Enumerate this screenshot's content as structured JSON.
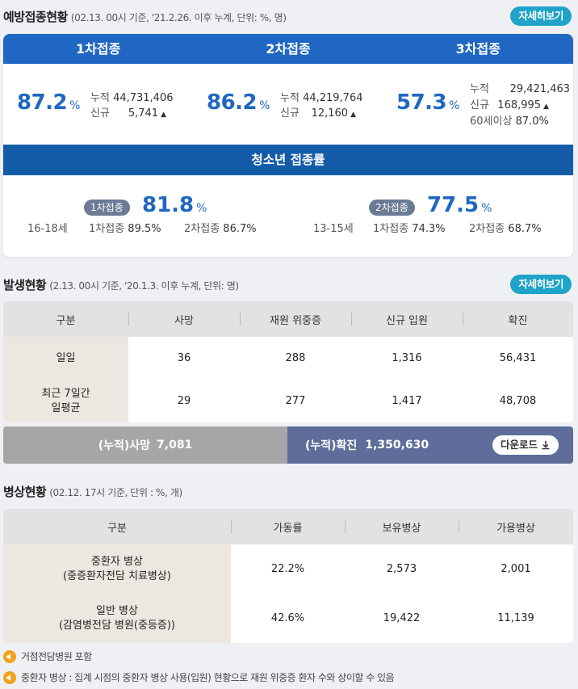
{
  "vaccination": {
    "title": "예방접종현황",
    "subtitle": "(02.13. 00시 기준, '21.2.26. 이후 누계, 단위: %, 명)",
    "more_label": "자세히보기",
    "doses": [
      {
        "label": "1차접종",
        "pct": "87.2",
        "unit": "%",
        "cum_label": "누적",
        "cum": "44,731,406",
        "new_label": "신규",
        "new": "5,741"
      },
      {
        "label": "2차접종",
        "pct": "86.2",
        "unit": "%",
        "cum_label": "누적",
        "cum": "44,219,764",
        "new_label": "신규",
        "new": "12,160"
      },
      {
        "label": "3차접종",
        "pct": "57.3",
        "unit": "%",
        "cum_label": "누적",
        "cum": "29,421,463",
        "new_label": "신규",
        "new": "168,995",
        "extra_label": "60세이상",
        "extra": "87.0%"
      }
    ],
    "youth": {
      "title": "청소년 접종률",
      "groups": [
        {
          "age": "16-18세",
          "badge": "1차접종",
          "pct": "81.8",
          "unit": "%",
          "d1_label": "1차접종",
          "d1": "89.5%",
          "d2_label": "2차접종",
          "d2": "86.7%"
        },
        {
          "age": "13-15세",
          "badge": "2차접종",
          "pct": "77.5",
          "unit": "%",
          "d1_label": "1차접종",
          "d1": "74.3%",
          "d2_label": "2차접종",
          "d2": "68.7%"
        }
      ]
    }
  },
  "outbreak": {
    "title": "발생현황",
    "subtitle": "(2.13. 00시 기준, '20.1.3. 이후 누계, 단위: 명)",
    "more_label": "자세히보기",
    "headers": [
      "구분",
      "사망",
      "재원 위중증",
      "신규 입원",
      "확진"
    ],
    "rows": [
      {
        "label": "일일",
        "cells": [
          "36",
          "288",
          "1,316",
          "56,431"
        ]
      },
      {
        "label": "최근 7일간\n일평균",
        "cells": [
          "29",
          "277",
          "1,417",
          "48,708"
        ]
      }
    ],
    "total_death_label": "(누적)사망",
    "total_death": "7,081",
    "total_confirmed_label": "(누적)확진",
    "total_confirmed": "1,350,630",
    "download_label": "다운로드"
  },
  "beds": {
    "title": "병상현황",
    "subtitle": "(02.12. 17시 기준, 단위 : %, 개)",
    "headers": [
      "구분",
      "가동률",
      "보유병상",
      "가용병상"
    ],
    "rows": [
      {
        "label": "중환자 병상\n(중증환자전담 치료병상)",
        "cells": [
          "22.2%",
          "2,573",
          "2,001"
        ]
      },
      {
        "label": "일반 병상\n(감염병전담 병원(중등증))",
        "cells": [
          "42.6%",
          "19,422",
          "11,139"
        ]
      }
    ]
  },
  "notes": [
    "거점전담병원 포함",
    "중환자 병상 : 집계 시점의 중환자 병상 사용(입원) 현황으로 재원 위중증 환자 수와 상이할 수 있음"
  ],
  "colors": {
    "primary": "#1f67c2",
    "accent": "#1fa3c8",
    "youth_bar": "#155ca8",
    "confirmed_bar": "#5e6d9a",
    "death_bar": "#a6a6a6",
    "note_icon": "#f3a11a"
  }
}
